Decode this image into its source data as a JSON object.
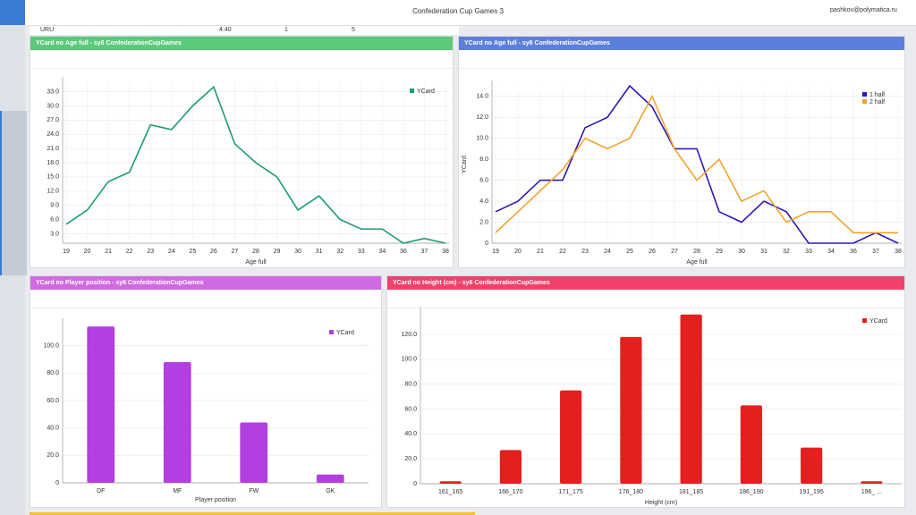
{
  "header": {
    "title": "Confederation Cup Games 3",
    "user": "pashkov@polymatica.ru"
  },
  "table_row": [
    "URU",
    "4.40",
    "1",
    "5"
  ],
  "chart_data": [
    {
      "type": "line",
      "title": "YCard по Age full - sy6 ConfederationCupGames",
      "x_label": "Age full",
      "grid": true,
      "legend": "top-right",
      "categories": [
        "19",
        "20",
        "21",
        "22",
        "23",
        "24",
        "25",
        "26",
        "27",
        "28",
        "29",
        "30",
        "31",
        "32",
        "33",
        "34",
        "36",
        "37",
        "38"
      ],
      "series": [
        {
          "name": "YCard",
          "color": "#1e9a78",
          "values": [
            5,
            8,
            14,
            16,
            26,
            25,
            30,
            34,
            22,
            18,
            15,
            8,
            11,
            6,
            4,
            4,
            1,
            2,
            1
          ]
        }
      ],
      "ylim": [
        1,
        35
      ],
      "yticks": [
        {
          "value": 3,
          "label": "3.0"
        },
        {
          "value": 6,
          "label": "6.0"
        },
        {
          "value": 9,
          "label": "9.0"
        },
        {
          "value": 12,
          "label": "12.0"
        },
        {
          "value": 15,
          "label": "15.0"
        },
        {
          "value": 18,
          "label": "18.0"
        },
        {
          "value": 21,
          "label": "21.0"
        },
        {
          "value": 24,
          "label": "24.0"
        },
        {
          "value": 27,
          "label": "27.0"
        },
        {
          "value": 30,
          "label": "30.0"
        },
        {
          "value": 33,
          "label": "33.0"
        }
      ]
    },
    {
      "type": "line",
      "title": "YCard по Age full - sy6 ConfederationCupGames",
      "x_label": "Age full",
      "y_label": "YCard",
      "grid": true,
      "legend": "top-right",
      "categories": [
        "19",
        "20",
        "21",
        "22",
        "23",
        "24",
        "25",
        "26",
        "27",
        "28",
        "29",
        "30",
        "31",
        "32",
        "33",
        "34",
        "36",
        "37",
        "38"
      ],
      "series": [
        {
          "name": "1 half",
          "color": "#2b19b5",
          "values": [
            3,
            4,
            6,
            6,
            11,
            12,
            15,
            13,
            9,
            9,
            3,
            2,
            4,
            3,
            0,
            0,
            0,
            1,
            0
          ]
        },
        {
          "name": "2 half",
          "color": "#f2a22d",
          "values": [
            1,
            3,
            5,
            7,
            10,
            9,
            10,
            14,
            9,
            6,
            8,
            4,
            5,
            2,
            3,
            3,
            1,
            1,
            1
          ]
        }
      ],
      "ylim": [
        0,
        15
      ],
      "yticks": [
        0,
        {
          "value": 2,
          "label": "2.0"
        },
        {
          "value": 4,
          "label": "4.0"
        },
        {
          "value": 6,
          "label": "6.0"
        },
        {
          "value": 8,
          "label": "8.0"
        },
        {
          "value": 10,
          "label": "10.0"
        },
        {
          "value": 12,
          "label": "12.0"
        },
        {
          "value": 14,
          "label": "14.0"
        }
      ]
    },
    {
      "type": "bar",
      "title": "YCard по Player position - sy6 ConfederationCupGames",
      "x_label": "Player position",
      "grid": true,
      "legend": "top-right",
      "categories": [
        "DF",
        "MF",
        "FW",
        "GK"
      ],
      "series": [
        {
          "name": "YCard",
          "color": "#b23fe0",
          "values": [
            114,
            88,
            44,
            6
          ]
        }
      ],
      "ylim": [
        0,
        116
      ],
      "yticks": [
        0,
        {
          "value": 20,
          "label": "20.0"
        },
        {
          "value": 40,
          "label": "40.0"
        },
        {
          "value": 60,
          "label": "60.0"
        },
        {
          "value": 80,
          "label": "80.0"
        },
        {
          "value": 100,
          "label": "100.0"
        }
      ]
    },
    {
      "type": "bar",
      "title": "YCard по Height (cm) - sy6 ConfederationCupGames",
      "x_label": "Height (cm)",
      "grid": true,
      "legend": "top-right",
      "categories": [
        "161_165",
        "166_170",
        "171_175",
        "176_180",
        "181_185",
        "186_190",
        "191_195",
        "196_ ..."
      ],
      "series": [
        {
          "name": "YCard",
          "color": "#e3201f",
          "values": [
            2,
            27,
            75,
            118,
            136,
            63,
            29,
            2
          ]
        }
      ],
      "ylim": [
        0,
        138
      ],
      "yticks": [
        0,
        {
          "value": 20,
          "label": "20.0"
        },
        {
          "value": 40,
          "label": "40.0"
        },
        {
          "value": 60,
          "label": "60.0"
        },
        {
          "value": 80,
          "label": "80.0"
        },
        {
          "value": 100,
          "label": "100.0"
        },
        {
          "value": 120,
          "label": "120.0"
        }
      ]
    }
  ]
}
